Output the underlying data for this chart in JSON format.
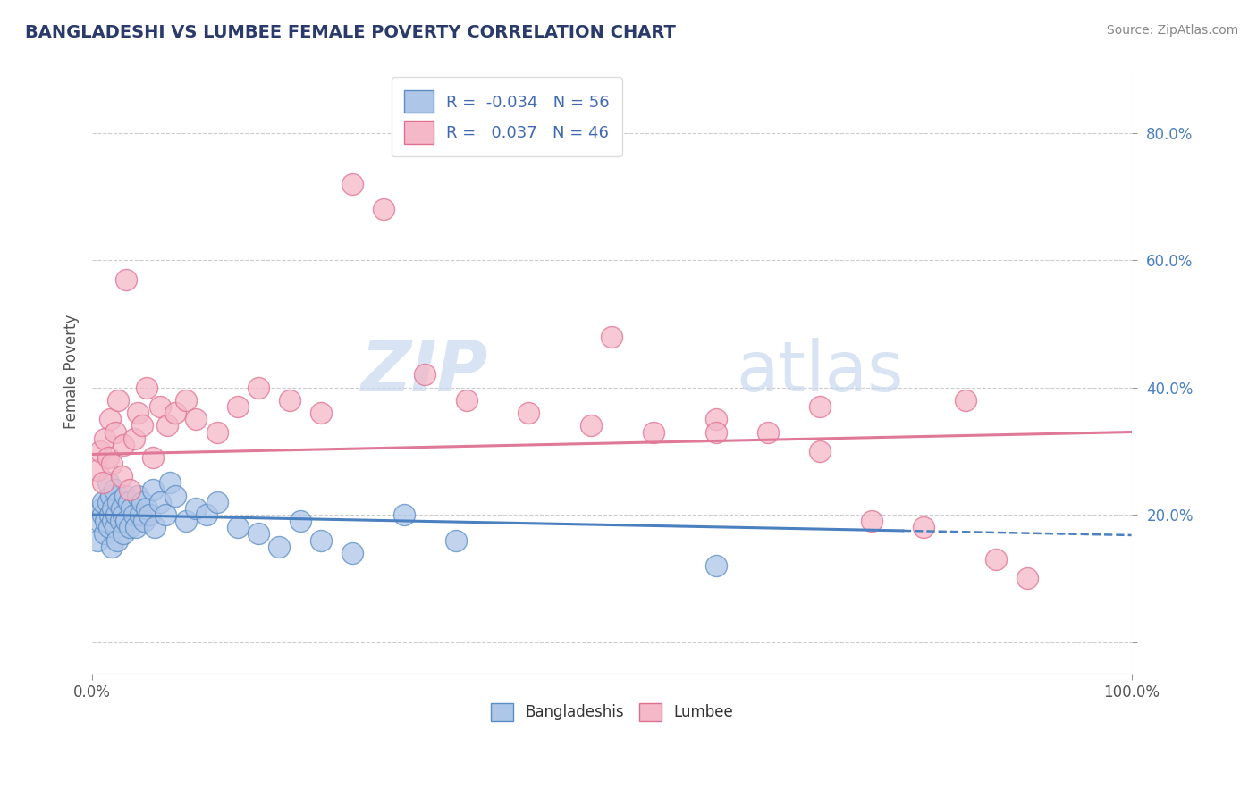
{
  "title": "BANGLADESHI VS LUMBEE FEMALE POVERTY CORRELATION CHART",
  "source": "Source: ZipAtlas.com",
  "ylabel": "Female Poverty",
  "xlim": [
    0.0,
    1.0
  ],
  "ylim": [
    -0.05,
    0.9
  ],
  "ytick_positions": [
    0.0,
    0.2,
    0.4,
    0.6,
    0.8
  ],
  "yticklabels": [
    "",
    "20.0%",
    "40.0%",
    "60.0%",
    "80.0%"
  ],
  "bangladeshi_color": "#aec6e8",
  "lumbee_color": "#f4b8c8",
  "bangladeshi_edge_color": "#5b8ec4",
  "lumbee_edge_color": "#e07090",
  "bangladeshi_line_color": "#4a7fc0",
  "lumbee_line_color": "#e07898",
  "legend_text_color": "#4169b0",
  "R_bangladeshi": -0.034,
  "N_bangladeshi": 56,
  "R_lumbee": 0.037,
  "N_lumbee": 46,
  "bangladeshi_x": [
    0.005,
    0.007,
    0.009,
    0.01,
    0.01,
    0.012,
    0.013,
    0.015,
    0.015,
    0.016,
    0.017,
    0.018,
    0.019,
    0.02,
    0.02,
    0.021,
    0.022,
    0.023,
    0.024,
    0.025,
    0.027,
    0.028,
    0.03,
    0.03,
    0.032,
    0.033,
    0.035,
    0.036,
    0.038,
    0.04,
    0.042,
    0.044,
    0.046,
    0.048,
    0.05,
    0.052,
    0.055,
    0.058,
    0.06,
    0.065,
    0.07,
    0.075,
    0.08,
    0.09,
    0.1,
    0.11,
    0.12,
    0.14,
    0.16,
    0.18,
    0.2,
    0.22,
    0.25,
    0.3,
    0.35,
    0.6
  ],
  "bangladeshi_y": [
    0.16,
    0.19,
    0.21,
    0.2,
    0.22,
    0.17,
    0.19,
    0.22,
    0.25,
    0.18,
    0.2,
    0.23,
    0.15,
    0.19,
    0.21,
    0.24,
    0.18,
    0.2,
    0.16,
    0.22,
    0.19,
    0.21,
    0.17,
    0.2,
    0.23,
    0.19,
    0.22,
    0.18,
    0.21,
    0.2,
    0.18,
    0.23,
    0.2,
    0.22,
    0.19,
    0.21,
    0.2,
    0.24,
    0.18,
    0.22,
    0.2,
    0.25,
    0.23,
    0.19,
    0.21,
    0.2,
    0.22,
    0.18,
    0.17,
    0.15,
    0.19,
    0.16,
    0.14,
    0.2,
    0.16,
    0.12
  ],
  "lumbee_x": [
    0.005,
    0.008,
    0.01,
    0.012,
    0.015,
    0.017,
    0.019,
    0.022,
    0.025,
    0.028,
    0.03,
    0.033,
    0.036,
    0.04,
    0.044,
    0.048,
    0.052,
    0.058,
    0.065,
    0.072,
    0.08,
    0.09,
    0.1,
    0.12,
    0.14,
    0.16,
    0.19,
    0.22,
    0.25,
    0.28,
    0.32,
    0.36,
    0.42,
    0.48,
    0.54,
    0.6,
    0.65,
    0.7,
    0.75,
    0.8,
    0.84,
    0.87,
    0.9,
    0.5,
    0.6,
    0.7
  ],
  "lumbee_y": [
    0.27,
    0.3,
    0.25,
    0.32,
    0.29,
    0.35,
    0.28,
    0.33,
    0.38,
    0.26,
    0.31,
    0.57,
    0.24,
    0.32,
    0.36,
    0.34,
    0.4,
    0.29,
    0.37,
    0.34,
    0.36,
    0.38,
    0.35,
    0.33,
    0.37,
    0.4,
    0.38,
    0.36,
    0.72,
    0.68,
    0.42,
    0.38,
    0.36,
    0.34,
    0.33,
    0.35,
    0.33,
    0.3,
    0.19,
    0.18,
    0.38,
    0.13,
    0.1,
    0.48,
    0.33,
    0.37
  ],
  "background_color": "#ffffff",
  "grid_color": "#cccccc",
  "watermark_zip_color": "#c8d8ee",
  "watermark_atlas_color": "#c8d8ee"
}
